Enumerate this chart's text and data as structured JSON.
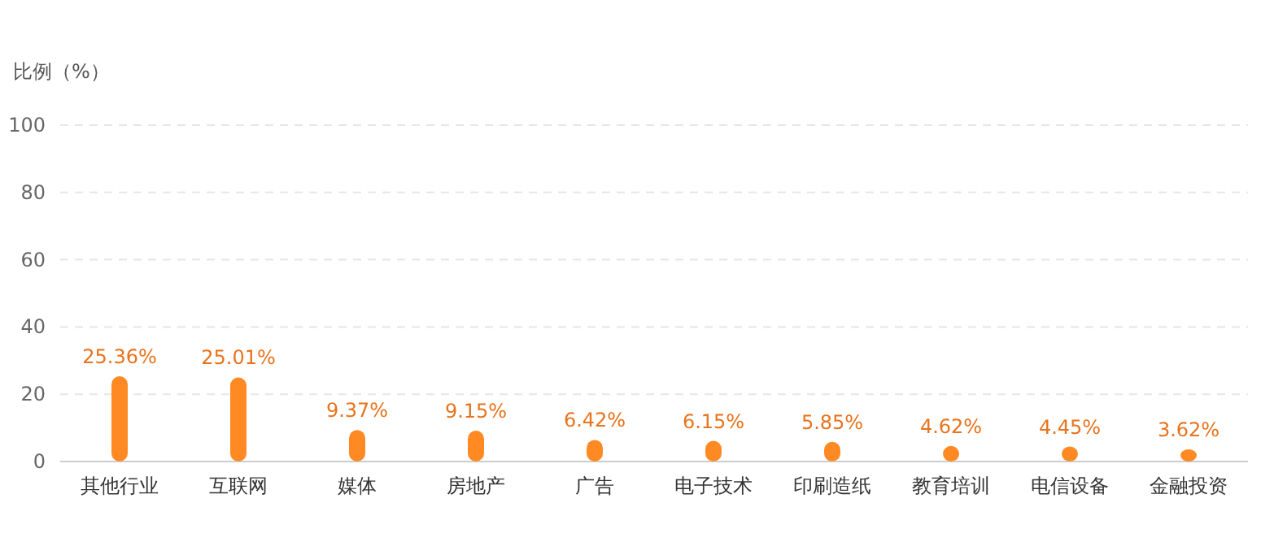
{
  "chart_data": {
    "type": "bar",
    "ylabel": "比例（%）",
    "categories": [
      "其他行业",
      "互联网",
      "媒体",
      "房地产",
      "广告",
      "电子技术",
      "印刷造纸",
      "教育培训",
      "电信设备",
      "金融投资"
    ],
    "values": [
      25.36,
      25.01,
      9.37,
      9.15,
      6.42,
      6.15,
      5.85,
      4.62,
      4.45,
      3.62
    ],
    "value_labels": [
      "25.36%",
      "25.01%",
      "9.37%",
      "9.15%",
      "6.42%",
      "6.15%",
      "5.85%",
      "4.62%",
      "4.45%",
      "3.62%"
    ],
    "color": "#ff8a24",
    "ylim": [
      0,
      100
    ],
    "yticks": [
      0,
      20,
      40,
      60,
      80,
      100
    ],
    "grid": "y"
  }
}
